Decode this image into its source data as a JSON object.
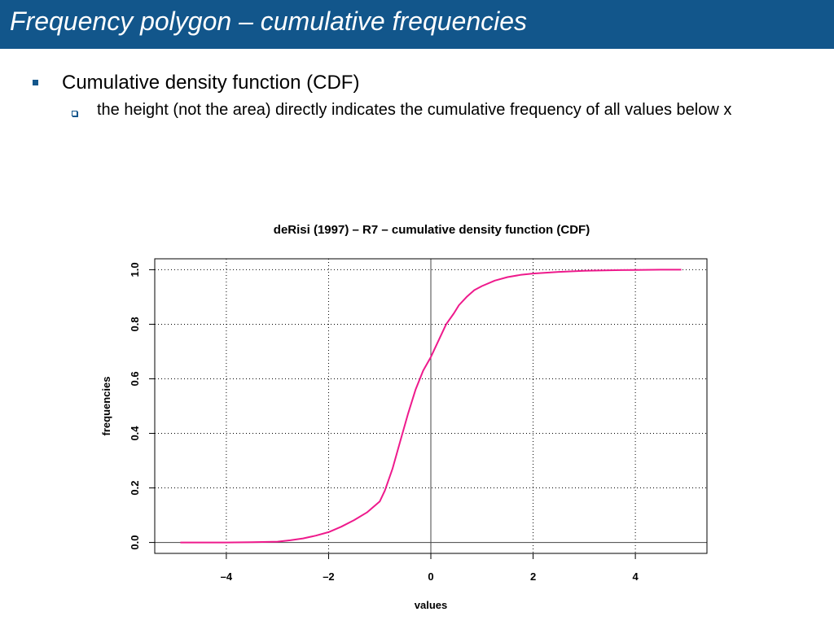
{
  "slide": {
    "title": "Frequency polygon – cumulative frequencies",
    "bullets": [
      {
        "text": "Cumulative density function (CDF)",
        "sub": [
          "the height (not the area) directly indicates the cumulative frequency of all values below x"
        ]
      }
    ]
  },
  "colors": {
    "title_bar": "#12568b",
    "bullet": "#12568b",
    "curve": "#ee1a8c",
    "grid": "#000000"
  },
  "chart_data": {
    "type": "line",
    "title": "deRisi (1997) – R7 – cumulative density function (CDF)",
    "xlabel": "values",
    "ylabel": "frequencies",
    "xlim": [
      -5.4,
      5.4
    ],
    "ylim": [
      -0.04,
      1.04
    ],
    "xticks": [
      -4,
      -2,
      0,
      2,
      4
    ],
    "xtick_labels": [
      "–4",
      "–2",
      "0",
      "2",
      "4"
    ],
    "yticks": [
      0.0,
      0.2,
      0.4,
      0.6,
      0.8,
      1.0
    ],
    "ytick_labels": [
      "0.0",
      "0.2",
      "0.4",
      "0.6",
      "0.8",
      "1.0"
    ],
    "grid": "dotted",
    "reference_lines": {
      "x": 0,
      "y": 0
    },
    "series": [
      {
        "x": [
          -4.9,
          -4.5,
          -4.0,
          -3.5,
          -3.0,
          -2.75,
          -2.5,
          -2.25,
          -2.0,
          -1.75,
          -1.5,
          -1.25,
          -1.0,
          -0.9,
          -0.75,
          -0.6,
          -0.45,
          -0.3,
          -0.15,
          0.0,
          0.15,
          0.3,
          0.45,
          0.55,
          0.7,
          0.85,
          1.0,
          1.25,
          1.5,
          1.75,
          2.0,
          2.5,
          3.0,
          3.5,
          4.0,
          4.5,
          4.9
        ],
        "y": [
          0.0,
          0.0,
          0.0,
          0.001,
          0.003,
          0.008,
          0.015,
          0.025,
          0.038,
          0.058,
          0.082,
          0.11,
          0.15,
          0.19,
          0.27,
          0.37,
          0.47,
          0.56,
          0.63,
          0.68,
          0.74,
          0.8,
          0.84,
          0.87,
          0.9,
          0.925,
          0.94,
          0.96,
          0.973,
          0.981,
          0.986,
          0.992,
          0.996,
          0.998,
          0.999,
          1.0,
          1.0
        ]
      }
    ]
  }
}
